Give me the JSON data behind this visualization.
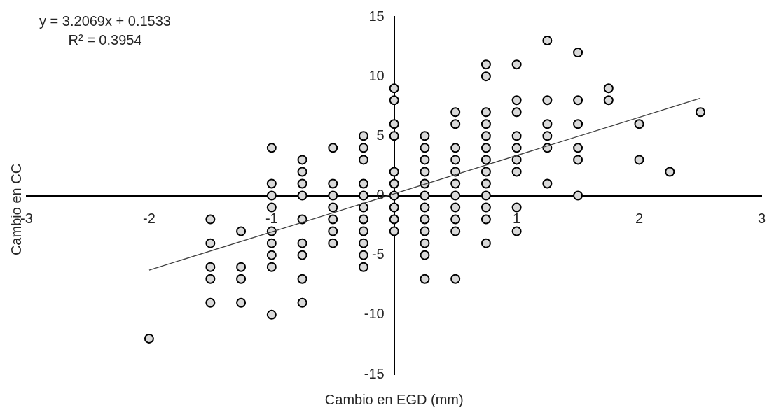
{
  "chart_data": {
    "type": "scatter",
    "xlabel": "Cambio en EGD (mm)",
    "ylabel": "Cambio en CC",
    "annotations": [
      "y = 3.2069x + 0.1533",
      "R² = 0.3954"
    ],
    "xlim": [
      -3,
      3
    ],
    "xticks": [
      -3,
      -2,
      -1,
      1,
      2,
      3
    ],
    "ylim": [
      -15,
      15
    ],
    "yticks": [
      -15,
      -10,
      -5,
      0,
      5,
      10,
      15
    ],
    "grid": false,
    "legend": false,
    "marker": "circle",
    "series": [
      {
        "color": "#d9d9d9",
        "x": [
          -2,
          -1.5,
          -1.5,
          -1.5,
          -1.5,
          -1.5,
          -1.25,
          -1.25,
          -1.25,
          -1.25,
          -1,
          -1,
          -1,
          -1,
          -1,
          -1,
          -1,
          -1,
          -1,
          -0.75,
          -0.75,
          -0.75,
          -0.75,
          -0.75,
          -0.75,
          -0.75,
          -0.75,
          -0.75,
          -0.5,
          -0.5,
          -0.5,
          -0.5,
          -0.5,
          -0.5,
          -0.5,
          -0.25,
          -0.25,
          -0.25,
          -0.25,
          -0.25,
          -0.25,
          -0.25,
          -0.25,
          -0.25,
          -0.25,
          -0.25,
          0,
          0,
          0,
          0,
          0,
          0,
          0,
          0,
          0,
          0,
          0.25,
          0.25,
          0.25,
          0.25,
          0.25,
          0.25,
          0.25,
          0.25,
          0.25,
          0.25,
          0.25,
          0.25,
          0.5,
          0.5,
          0.5,
          0.5,
          0.5,
          0.5,
          0.5,
          0.5,
          0.5,
          0.5,
          0.5,
          0.75,
          0.75,
          0.75,
          0.75,
          0.75,
          0.75,
          0.75,
          0.75,
          0.75,
          0.75,
          0.75,
          0.75,
          0.75,
          1,
          1,
          1,
          1,
          1,
          1,
          1,
          1,
          1,
          1.25,
          1.25,
          1.25,
          1.25,
          1.25,
          1.25,
          1.5,
          1.5,
          1.5,
          1.5,
          1.5,
          1.5,
          1.75,
          1.75,
          2,
          2,
          2.25,
          2.5
        ],
        "values": [
          -12,
          -2,
          -4,
          -6,
          -7,
          -9,
          -3,
          -6,
          -7,
          -9,
          4,
          1,
          0,
          -1,
          -3,
          -4,
          -5,
          -6,
          -10,
          3,
          2,
          1,
          0,
          -2,
          -4,
          -5,
          -7,
          -9,
          4,
          1,
          0,
          -1,
          -2,
          -3,
          -4,
          5,
          4,
          3,
          1,
          0,
          -1,
          -2,
          -3,
          -4,
          -5,
          -6,
          9,
          8,
          6,
          5,
          2,
          1,
          0,
          -1,
          -2,
          -3,
          5,
          4,
          3,
          2,
          1,
          0,
          -1,
          -2,
          -3,
          -4,
          -5,
          -7,
          7,
          6,
          4,
          3,
          2,
          1,
          0,
          -1,
          -2,
          -3,
          -7,
          11,
          10,
          7,
          6,
          5,
          4,
          3,
          2,
          1,
          0,
          -1,
          -2,
          -4,
          11,
          8,
          7,
          5,
          4,
          3,
          2,
          -1,
          -3,
          13,
          8,
          6,
          5,
          4,
          1,
          12,
          8,
          6,
          4,
          3,
          0,
          9,
          8,
          6,
          3,
          2,
          7
        ]
      },
      {
        "type": "line",
        "color": "#404040",
        "marker": "none",
        "x": [
          -2,
          2.5
        ],
        "values": [
          -6.26,
          8.17
        ]
      }
    ]
  }
}
